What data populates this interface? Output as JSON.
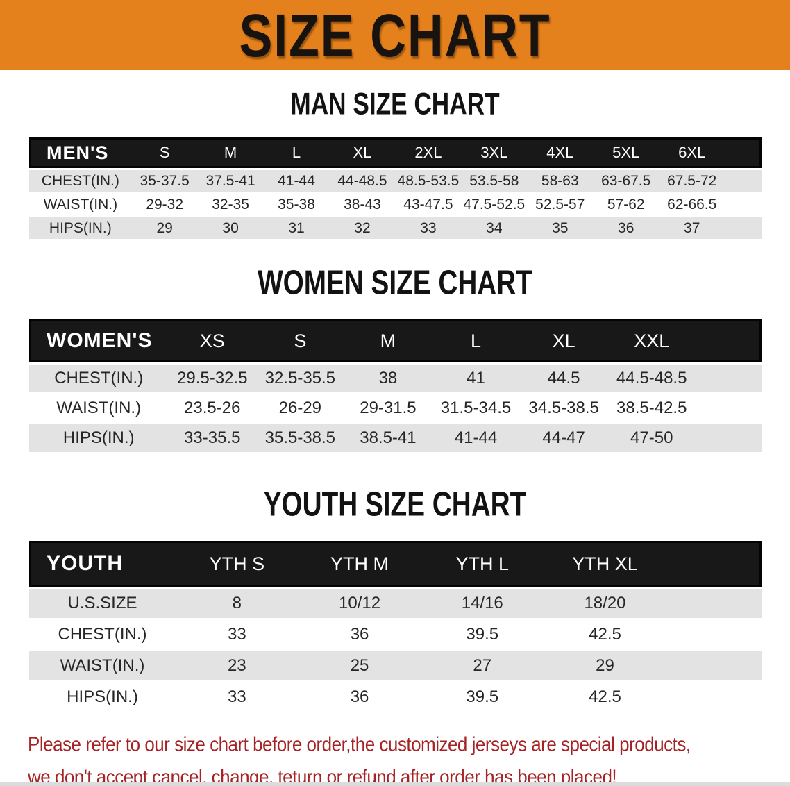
{
  "banner": {
    "title": "SIZE CHART"
  },
  "sections": [
    {
      "heading": "MAN SIZE CHART",
      "table": {
        "header": [
          "MEN'S",
          "S",
          "M",
          "L",
          "XL",
          "2XL",
          "3XL",
          "4XL",
          "5XL",
          "6XL"
        ],
        "rows": [
          {
            "label": "CHEST(IN.)",
            "values": [
              "35-37.5",
              "37.5-41",
              "41-44",
              "44-48.5",
              "48.5-53.5",
              "53.5-58",
              "58-63",
              "63-67.5",
              "67.5-72"
            ]
          },
          {
            "label": "WAIST(IN.)",
            "values": [
              "29-32",
              "32-35",
              "35-38",
              "38-43",
              "43-47.5",
              "47.5-52.5",
              "52.5-57",
              "57-62",
              "62-66.5"
            ]
          },
          {
            "label": "HIPS(IN.)",
            "values": [
              "29",
              "30",
              "31",
              "32",
              "33",
              "34",
              "35",
              "36",
              "37"
            ]
          }
        ]
      }
    },
    {
      "heading": "WOMEN SIZE CHART",
      "table": {
        "header": [
          "WOMEN'S",
          "XS",
          "S",
          "M",
          "L",
          "XL",
          "XXL"
        ],
        "rows": [
          {
            "label": "CHEST(IN.)",
            "values": [
              "29.5-32.5",
              "32.5-35.5",
              "38",
              "41",
              "44.5",
              "44.5-48.5"
            ]
          },
          {
            "label": "WAIST(IN.)",
            "values": [
              "23.5-26",
              "26-29",
              "29-31.5",
              "31.5-34.5",
              "34.5-38.5",
              "38.5-42.5"
            ]
          },
          {
            "label": "HIPS(IN.)",
            "values": [
              "33-35.5",
              "35.5-38.5",
              "38.5-41",
              "41-44",
              "44-47",
              "47-50"
            ]
          }
        ]
      }
    },
    {
      "heading": "YOUTH SIZE CHART",
      "table": {
        "header": [
          "YOUTH",
          "YTH S",
          "YTH M",
          "YTH L",
          "YTH XL"
        ],
        "rows": [
          {
            "label": "U.S.SIZE",
            "values": [
              "8",
              "10/12",
              "14/16",
              "18/20"
            ]
          },
          {
            "label": "CHEST(IN.)",
            "values": [
              "33",
              "36",
              "39.5",
              "42.5"
            ]
          },
          {
            "label": "WAIST(IN.)",
            "values": [
              "23",
              "25",
              "27",
              "29"
            ]
          },
          {
            "label": "HIPS(IN.)",
            "values": [
              "33",
              "36",
              "39.5",
              "42.5"
            ]
          }
        ]
      }
    }
  ],
  "footer": {
    "lines": [
      "Please refer to our size chart before order,the customized jerseys are special products,",
      "we don't accept cancel, change, teturn or refund after order has been placed!"
    ]
  },
  "colors": {
    "banner_bg": "#e5811d",
    "header_bar_bg": "#181818",
    "row_stripe": "#e3e3e3",
    "note_text": "#a52325"
  }
}
